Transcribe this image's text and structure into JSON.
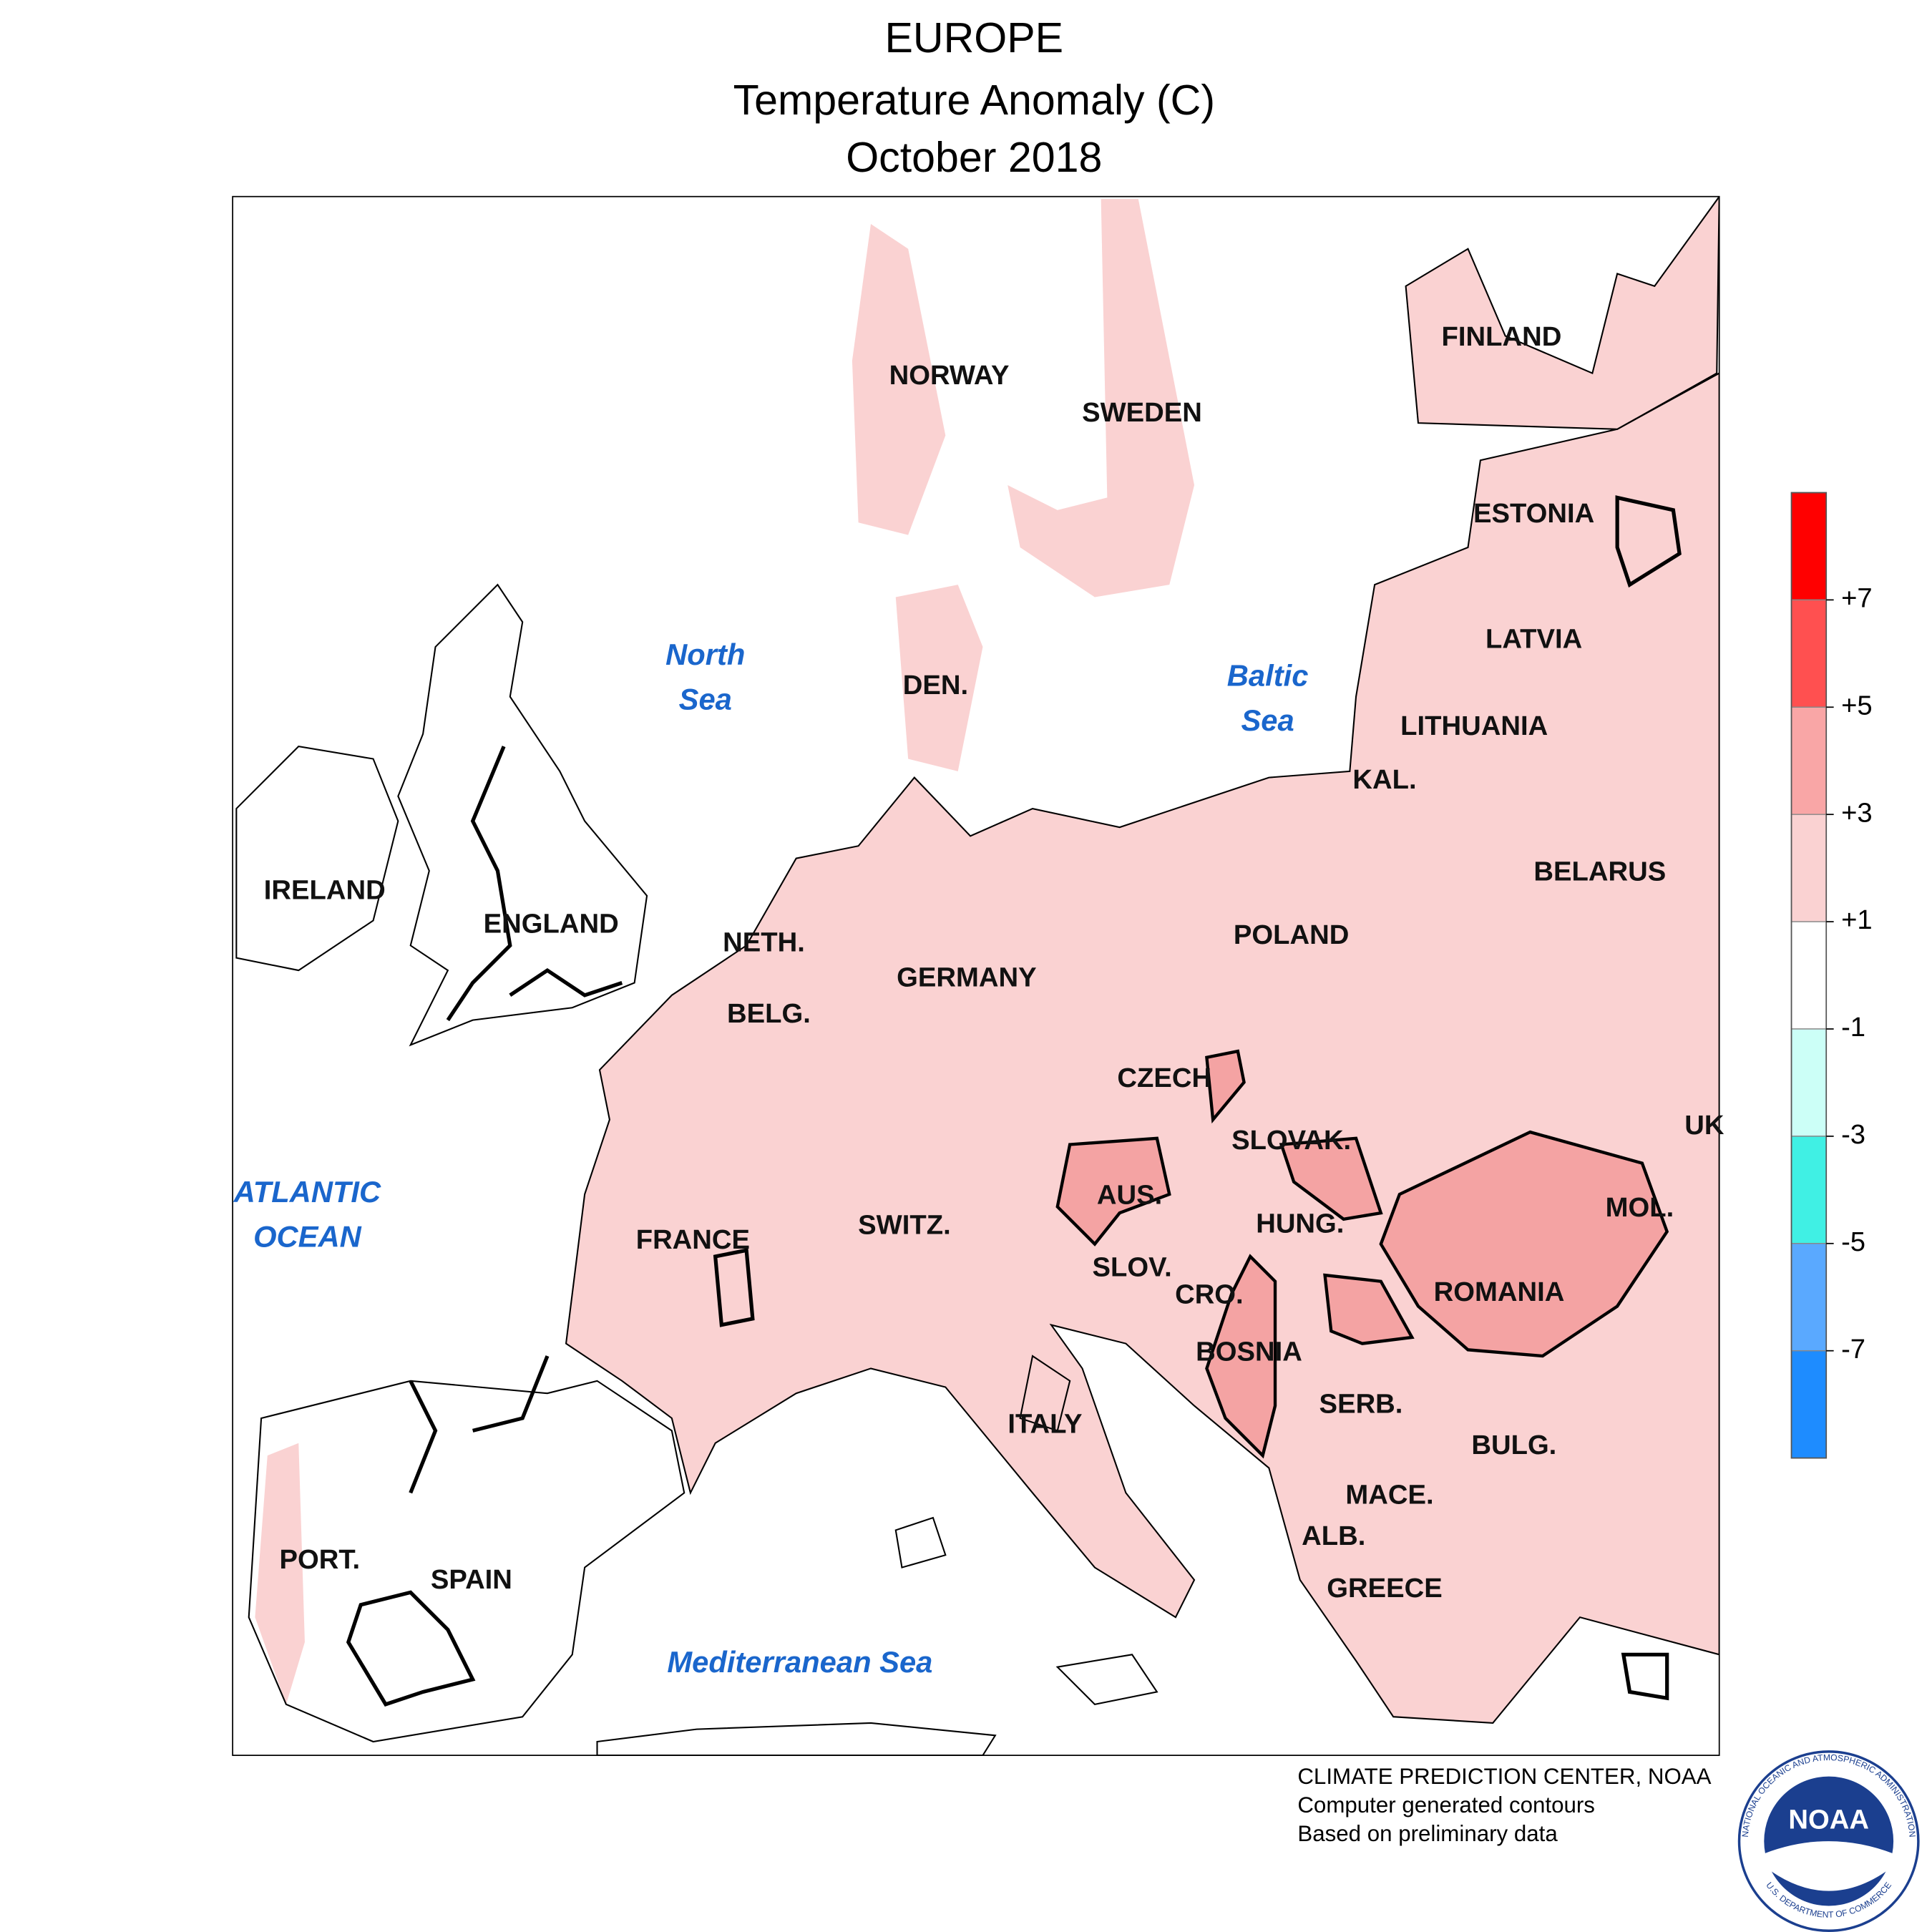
{
  "header": {
    "title": "EUROPE",
    "subtitle": "Temperature Anomaly (C)",
    "period": "October 2018"
  },
  "map": {
    "countries": [
      "NORWAY",
      "SWEDEN",
      "FINLAND",
      "ESTONIA",
      "LATVIA",
      "LITHUANIA",
      "KAL.",
      "BELARUS",
      "POLAND",
      "DEN.",
      "IRELAND",
      "ENGLAND",
      "NETH.",
      "BELG.",
      "GERMANY",
      "CZECH",
      "SLOVAK.",
      "UK",
      "AUS.",
      "MOL.",
      "HUNG.",
      "SWITZ.",
      "FRANCE",
      "SLOV.",
      "CRO.",
      "ROMANIA",
      "BOSNIA",
      "SERB.",
      "ITALY",
      "BULG.",
      "MACE.",
      "ALB.",
      "PORT.",
      "SPAIN",
      "GREECE"
    ],
    "seas": [
      [
        "North",
        "Sea"
      ],
      [
        "Baltic",
        "Sea"
      ],
      [
        "ATLANTIC",
        "OCEAN"
      ],
      [
        "Mediterranean Sea"
      ]
    ]
  },
  "legend": {
    "colors": [
      "#ff0000",
      "#ff5050",
      "#f9a6a6",
      "#fad2d2",
      "#ffffff",
      "#ccfff7",
      "#40f0e4",
      "#5aa9ff",
      "#1e8cff"
    ],
    "ticks": [
      {
        "value": 7,
        "label": "+7"
      },
      {
        "value": 5,
        "label": "+5"
      },
      {
        "value": 3,
        "label": "+3"
      },
      {
        "value": 1,
        "label": "+1"
      },
      -1,
      -3,
      -5,
      -7
    ]
  },
  "footer": {
    "lines": [
      "CLIMATE PREDICTION CENTER, NOAA",
      "Computer generated contours",
      "Based on preliminary data"
    ],
    "logo": "NOAA",
    "ring_top": "NATIONAL OCEANIC AND ATMOSPHERIC ADMINISTRATION",
    "ring_bottom": "U.S. DEPARTMENT OF COMMERCE"
  }
}
